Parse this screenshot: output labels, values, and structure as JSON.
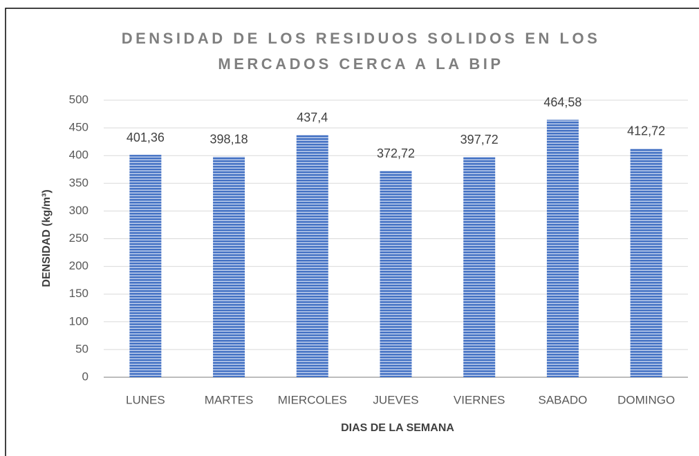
{
  "chart_data": {
    "type": "bar",
    "title": [
      "DENSIDAD DE LOS RESIDUOS SOLIDOS EN LOS",
      "MERCADOS CERCA A LA BIP"
    ],
    "x_label": "DIAS DE LA SEMANA",
    "y_label": "DENSIDAD (kg/m³)",
    "categories": [
      "LUNES",
      "MARTES",
      "MIERCOLES",
      "JUEVES",
      "VIERNES",
      "SABADO",
      "DOMINGO"
    ],
    "values": [
      401.36,
      398.18,
      437.4,
      372.72,
      397.72,
      464.58,
      412.72
    ],
    "value_labels": [
      "401,36",
      "398,18",
      "437,4",
      "372,72",
      "397,72",
      "464,58",
      "412,72"
    ],
    "color": "#4472c4",
    "ylim": [
      0,
      500
    ],
    "yticks": [
      0,
      50,
      100,
      150,
      200,
      250,
      300,
      350,
      400,
      450,
      500
    ],
    "grid": true
  }
}
